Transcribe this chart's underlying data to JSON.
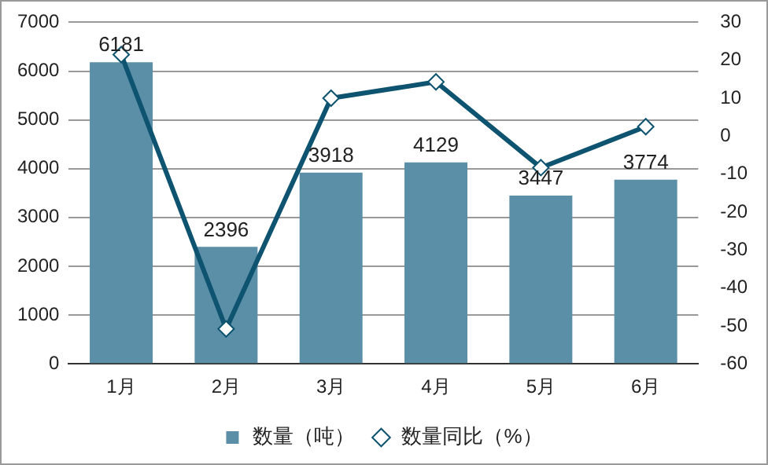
{
  "chart_data": {
    "type": "bar",
    "categories": [
      "1月",
      "2月",
      "3月",
      "4月",
      "5月",
      "6月"
    ],
    "series": [
      {
        "name": "数量（吨）",
        "color": "#5b8fa8",
        "values": [
          6181,
          2396,
          3918,
          4129,
          3447,
          3774
        ],
        "value_labels": [
          "6181",
          "2396",
          "3918",
          "4129",
          "3447",
          "3774"
        ]
      },
      {
        "name": "数量同比（%）",
        "type": "line",
        "axis": "y2",
        "color": "#0e5470",
        "marker": "diamond",
        "values": [
          21.5,
          -50.8,
          10.0,
          14.3,
          -8.3,
          2.5
        ]
      }
    ],
    "ylim": [
      0,
      7000
    ],
    "yticks": [
      0,
      1000,
      2000,
      3000,
      4000,
      5000,
      6000,
      7000
    ],
    "y2lim": [
      -60,
      30
    ],
    "y2ticks": [
      -60,
      -50,
      -40,
      -30,
      -20,
      -10,
      0,
      10,
      20,
      30
    ],
    "grid": "y",
    "legend": "bottom"
  }
}
